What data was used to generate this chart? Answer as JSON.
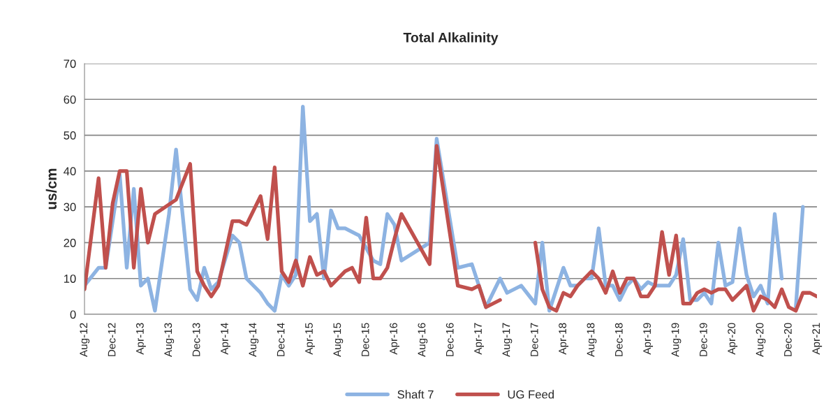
{
  "chart_data": {
    "type": "line",
    "title": "Total Alkalinity",
    "ylabel": "us/cm",
    "ylim": [
      0,
      70
    ],
    "yticks": [
      0,
      10,
      20,
      30,
      40,
      50,
      60,
      70
    ],
    "xlim": [
      "2012-08",
      "2021-04"
    ],
    "xticks": [
      {
        "value": "2012-08",
        "label": "Aug-12"
      },
      {
        "value": "2012-12",
        "label": "Dec-12"
      },
      {
        "value": "2013-04",
        "label": "Apr-13"
      },
      {
        "value": "2013-08",
        "label": "Aug-13"
      },
      {
        "value": "2013-12",
        "label": "Dec-13"
      },
      {
        "value": "2014-04",
        "label": "Apr-14"
      },
      {
        "value": "2014-08",
        "label": "Aug-14"
      },
      {
        "value": "2014-12",
        "label": "Dec-14"
      },
      {
        "value": "2015-04",
        "label": "Apr-15"
      },
      {
        "value": "2015-08",
        "label": "Aug-15"
      },
      {
        "value": "2015-12",
        "label": "Dec-15"
      },
      {
        "value": "2016-04",
        "label": "Apr-16"
      },
      {
        "value": "2016-08",
        "label": "Aug-16"
      },
      {
        "value": "2016-12",
        "label": "Dec-16"
      },
      {
        "value": "2017-04",
        "label": "Apr-17"
      },
      {
        "value": "2017-08",
        "label": "Aug-17"
      },
      {
        "value": "2017-12",
        "label": "Dec-17"
      },
      {
        "value": "2018-04",
        "label": "Apr-18"
      },
      {
        "value": "2018-08",
        "label": "Aug-18"
      },
      {
        "value": "2018-12",
        "label": "Dec-18"
      },
      {
        "value": "2019-04",
        "label": "Apr-19"
      },
      {
        "value": "2019-08",
        "label": "Aug-19"
      },
      {
        "value": "2019-12",
        "label": "Dec-19"
      },
      {
        "value": "2020-04",
        "label": "Apr-20"
      },
      {
        "value": "2020-08",
        "label": "Aug-20"
      },
      {
        "value": "2020-12",
        "label": "Dec-20"
      },
      {
        "value": "2021-04",
        "label": "Apr-21"
      }
    ],
    "grid": "y",
    "legend": "bottom",
    "line_style": "solid",
    "series": [
      {
        "name": "Shaft 7",
        "color": "#8db3e2",
        "x": [
          "2012-08",
          "2012-10",
          "2012-11",
          "2013-01",
          "2013-02",
          "2013-03",
          "2013-04",
          "2013-05",
          "2013-06",
          "2013-08",
          "2013-09",
          "2013-11",
          "2013-12",
          "2014-01",
          "2014-02",
          "2014-03",
          "2014-05",
          "2014-06",
          "2014-07",
          "2014-09",
          "2014-10",
          "2014-11",
          "2014-12",
          "2015-01",
          "2015-02",
          "2015-03",
          "2015-04",
          "2015-05",
          "2015-06",
          "2015-07",
          "2015-08",
          "2015-09",
          "2015-11",
          "2016-01",
          "2016-02",
          "2016-03",
          "2016-04",
          "2016-05",
          "2016-09",
          "2016-10",
          "2017-01",
          "2017-03",
          "2017-05",
          "2017-07",
          "2017-08",
          "2017-10",
          "2017-12",
          "2018-01",
          "2018-02",
          "2018-04",
          "2018-05",
          "2018-06",
          "2018-07",
          "2018-08",
          "2018-09",
          "2018-10",
          "2018-11",
          "2018-12",
          "2019-01",
          "2019-02",
          "2019-03",
          "2019-04",
          "2019-05",
          "2019-06",
          "2019-07",
          "2019-08",
          "2019-09",
          "2019-10",
          "2019-11",
          "2019-12",
          "2020-01",
          "2020-02",
          "2020-03",
          "2020-04",
          "2020-05",
          "2020-06",
          "2020-07",
          "2020-08",
          "2020-09",
          "2020-10",
          "2020-11",
          "2020-12",
          "2021-01",
          "2021-02"
        ],
        "values": [
          8,
          13,
          13,
          39,
          13,
          35,
          8,
          10,
          1,
          28,
          46,
          7,
          4,
          13,
          7,
          9,
          22,
          20,
          10,
          6,
          3,
          1,
          11,
          8,
          11,
          58,
          26,
          28,
          10,
          29,
          24,
          24,
          22,
          15,
          14,
          28,
          25,
          15,
          20,
          49,
          13,
          14,
          2,
          10,
          6,
          8,
          3,
          20,
          1,
          13,
          8,
          8,
          10,
          10,
          24,
          8,
          8,
          4,
          8,
          10,
          7,
          9,
          8,
          8,
          8,
          11,
          21,
          4,
          4,
          6,
          3,
          20,
          8,
          9,
          24,
          11,
          5,
          8,
          3,
          28,
          10,
          null,
          2,
          30
        ]
      },
      {
        "name": "UG Feed",
        "color": "#c0504d",
        "x": [
          "2012-08",
          "2012-10",
          "2012-11",
          "2012-12",
          "2013-01",
          "2013-02",
          "2013-03",
          "2013-04",
          "2013-05",
          "2013-06",
          "2013-09",
          "2013-11",
          "2013-12",
          "2014-01",
          "2014-02",
          "2014-03",
          "2014-05",
          "2014-06",
          "2014-07",
          "2014-09",
          "2014-10",
          "2014-11",
          "2014-12",
          "2015-01",
          "2015-02",
          "2015-03",
          "2015-04",
          "2015-05",
          "2015-06",
          "2015-07",
          "2015-09",
          "2015-10",
          "2015-11",
          "2015-12",
          "2016-01",
          "2016-02",
          "2016-03",
          "2016-04",
          "2016-05",
          "2016-09",
          "2016-10",
          "2017-01",
          "2017-03",
          "2017-04",
          "2017-05",
          "2017-07",
          "2017-08",
          "2017-12",
          "2018-01",
          "2018-02",
          "2018-03",
          "2018-04",
          "2018-05",
          "2018-06",
          "2018-08",
          "2018-09",
          "2018-10",
          "2018-11",
          "2018-12",
          "2019-01",
          "2019-02",
          "2019-03",
          "2019-04",
          "2019-05",
          "2019-06",
          "2019-07",
          "2019-08",
          "2019-09",
          "2019-10",
          "2019-11",
          "2019-12",
          "2020-01",
          "2020-02",
          "2020-03",
          "2020-04",
          "2020-06",
          "2020-07",
          "2020-08",
          "2020-09",
          "2020-10",
          "2020-11",
          "2020-12",
          "2021-01",
          "2021-02",
          "2021-03",
          "2021-04"
        ],
        "values": [
          7,
          38,
          13,
          31,
          40,
          40,
          13,
          35,
          20,
          28,
          32,
          42,
          12,
          8,
          5,
          8,
          26,
          26,
          25,
          33,
          21,
          41,
          12,
          9,
          15,
          8,
          16,
          11,
          12,
          8,
          12,
          13,
          9,
          27,
          10,
          10,
          13,
          21,
          28,
          14,
          47,
          8,
          7,
          8,
          2,
          4,
          null,
          20,
          7,
          2,
          1,
          6,
          5,
          8,
          12,
          10,
          6,
          12,
          6,
          10,
          10,
          5,
          5,
          8,
          23,
          11,
          22,
          3,
          3,
          6,
          7,
          6,
          7,
          7,
          4,
          8,
          1,
          5,
          4,
          2,
          7,
          2,
          1,
          6,
          6,
          5
        ]
      }
    ]
  }
}
